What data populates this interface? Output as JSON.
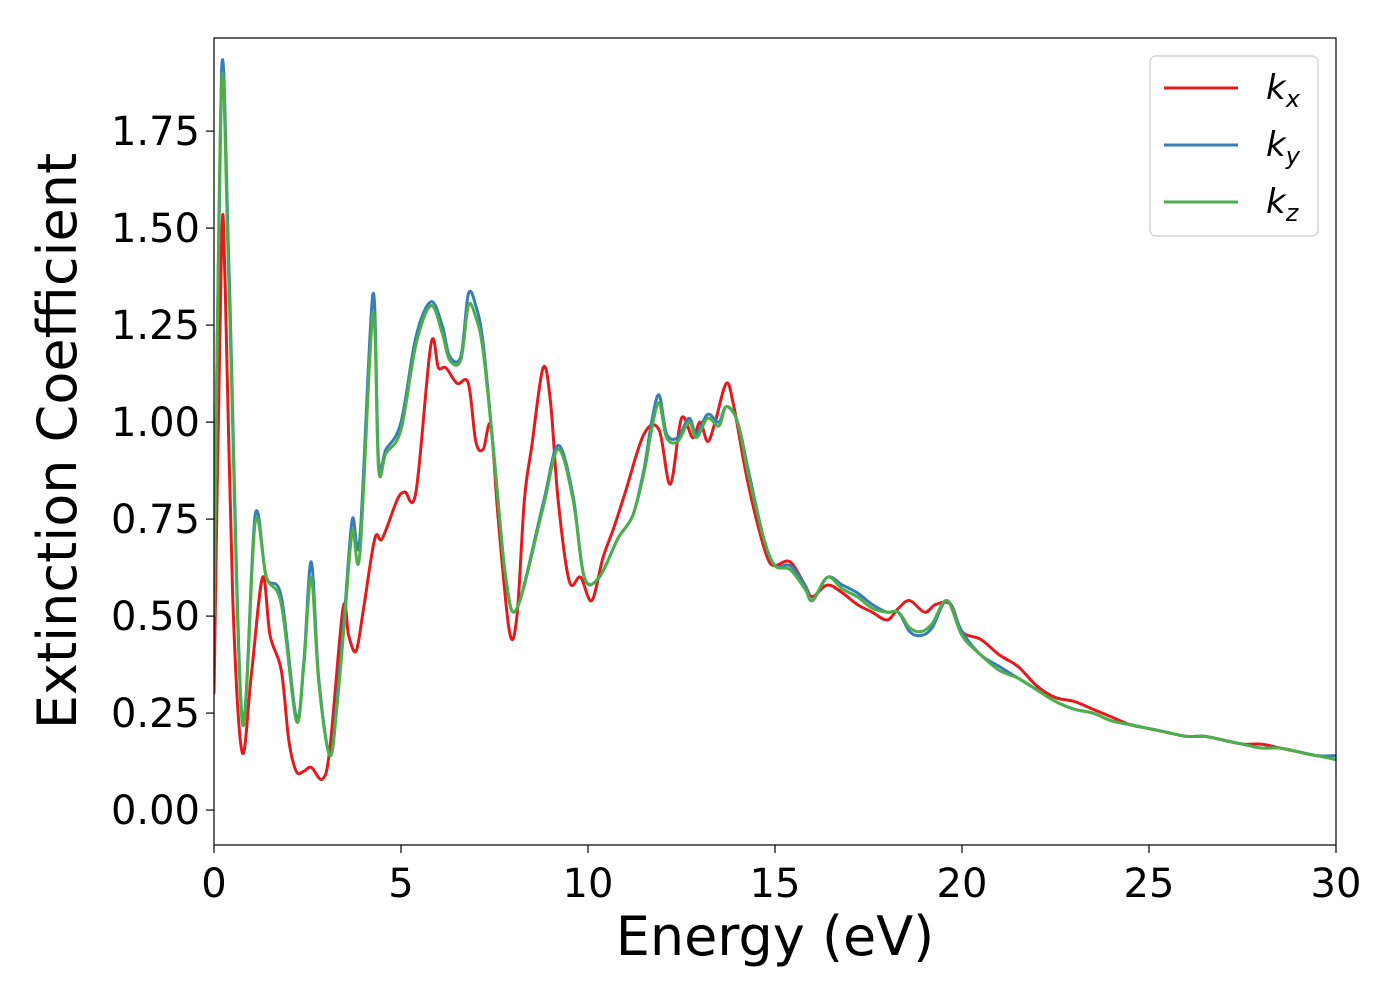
{
  "chart_data": {
    "type": "line",
    "title": "",
    "xlabel": "Energy (eV)",
    "ylabel": "Extinction Coefficient",
    "xlim": [
      0,
      30
    ],
    "ylim": [
      -0.09,
      1.99
    ],
    "xticks": [
      0,
      5,
      10,
      15,
      20,
      25,
      30
    ],
    "xtick_labels": [
      "0",
      "5",
      "10",
      "15",
      "20",
      "25",
      "30"
    ],
    "yticks": [
      0,
      0.25,
      0.5,
      0.75,
      1.0,
      1.25,
      1.5,
      1.75
    ],
    "ytick_labels": [
      "0.00",
      "0.25",
      "0.50",
      "0.75",
      "1.00",
      "1.25",
      "1.50",
      "1.75"
    ],
    "grid": false,
    "legend": {
      "position": "top-right"
    },
    "series": [
      {
        "name": "k",
        "sub": "x",
        "color": "#e41a1c",
        "x": [
          0,
          0.2,
          0.3,
          0.5,
          0.75,
          1.0,
          1.3,
          1.5,
          1.8,
          2.0,
          2.2,
          2.4,
          2.6,
          2.9,
          3.1,
          3.45,
          3.6,
          3.8,
          4.0,
          4.3,
          4.5,
          4.9,
          5.1,
          5.4,
          5.8,
          6.0,
          6.2,
          6.5,
          6.8,
          7.0,
          7.2,
          7.4,
          7.6,
          7.9,
          8.1,
          8.3,
          8.5,
          8.8,
          9.0,
          9.2,
          9.5,
          9.8,
          10.1,
          10.4,
          10.7,
          11.0,
          11.5,
          11.9,
          12.2,
          12.5,
          12.8,
          13.0,
          13.2,
          13.4,
          13.7,
          13.9,
          14.2,
          14.5,
          14.8,
          15.0,
          15.4,
          15.8,
          16.0,
          16.4,
          16.8,
          17.2,
          17.6,
          18.0,
          18.3,
          18.6,
          19.0,
          19.3,
          19.7,
          20.0,
          20.5,
          21.0,
          21.5,
          22.0,
          22.5,
          23.0,
          23.5,
          24.0,
          24.5,
          25.0,
          25.5,
          26.0,
          26.5,
          27.0,
          27.5,
          28.0,
          28.5,
          29.0,
          29.5,
          30.0
        ],
        "y": [
          0.3,
          1.45,
          1.35,
          0.55,
          0.15,
          0.35,
          0.6,
          0.45,
          0.36,
          0.18,
          0.1,
          0.1,
          0.11,
          0.08,
          0.16,
          0.52,
          0.45,
          0.41,
          0.52,
          0.7,
          0.7,
          0.8,
          0.82,
          0.82,
          1.2,
          1.14,
          1.14,
          1.1,
          1.1,
          0.95,
          0.93,
          0.99,
          0.75,
          0.46,
          0.5,
          0.8,
          0.94,
          1.14,
          1.05,
          0.8,
          0.59,
          0.6,
          0.54,
          0.65,
          0.73,
          0.82,
          0.97,
          0.98,
          0.84,
          1.01,
          0.96,
          1.0,
          0.95,
          1.0,
          1.1,
          1.04,
          0.88,
          0.75,
          0.65,
          0.63,
          0.64,
          0.58,
          0.55,
          0.58,
          0.56,
          0.53,
          0.51,
          0.49,
          0.52,
          0.54,
          0.51,
          0.53,
          0.53,
          0.46,
          0.44,
          0.4,
          0.37,
          0.32,
          0.29,
          0.28,
          0.26,
          0.24,
          0.22,
          0.21,
          0.2,
          0.19,
          0.19,
          0.18,
          0.17,
          0.17,
          0.16,
          0.15,
          0.14,
          0.14
        ]
      },
      {
        "name": "k",
        "sub": "y",
        "color": "#377eb8",
        "x": [
          0,
          0.2,
          0.4,
          0.75,
          1.1,
          1.4,
          1.8,
          2.2,
          2.4,
          2.6,
          2.8,
          3.1,
          3.3,
          3.5,
          3.7,
          3.9,
          4.25,
          4.4,
          4.6,
          5.0,
          5.4,
          5.8,
          6.1,
          6.3,
          6.6,
          6.8,
          7.0,
          7.2,
          7.5,
          7.8,
          8.1,
          8.8,
          9.2,
          9.6,
          9.9,
          10.3,
          10.8,
          11.2,
          11.5,
          11.7,
          11.9,
          12.1,
          12.4,
          12.7,
          12.9,
          13.2,
          13.5,
          13.7,
          14.0,
          14.3,
          14.7,
          15.0,
          15.4,
          15.8,
          16.0,
          16.4,
          16.8,
          17.2,
          17.6,
          18.0,
          18.3,
          18.6,
          18.9,
          19.2,
          19.6,
          20.0,
          20.5,
          21.0,
          21.5,
          22.0,
          22.5,
          23.0,
          23.5,
          24.0,
          24.5,
          25.0,
          25.5,
          26.0,
          26.5,
          27.0,
          27.5,
          28.0,
          28.5,
          29.0,
          29.5,
          30.0
        ],
        "y": [
          0.5,
          1.9,
          1.4,
          0.24,
          0.76,
          0.6,
          0.55,
          0.24,
          0.38,
          0.64,
          0.34,
          0.14,
          0.3,
          0.52,
          0.75,
          0.7,
          1.33,
          0.9,
          0.93,
          1.0,
          1.22,
          1.31,
          1.25,
          1.17,
          1.17,
          1.33,
          1.3,
          1.2,
          0.9,
          0.6,
          0.52,
          0.79,
          0.94,
          0.81,
          0.6,
          0.6,
          0.7,
          0.76,
          0.88,
          1.0,
          1.07,
          0.97,
          0.96,
          1.01,
          0.97,
          1.02,
          1.0,
          1.04,
          1.0,
          0.87,
          0.7,
          0.63,
          0.63,
          0.58,
          0.54,
          0.6,
          0.58,
          0.56,
          0.53,
          0.51,
          0.51,
          0.46,
          0.45,
          0.47,
          0.54,
          0.46,
          0.4,
          0.37,
          0.34,
          0.31,
          0.28,
          0.26,
          0.25,
          0.23,
          0.22,
          0.21,
          0.2,
          0.19,
          0.19,
          0.18,
          0.17,
          0.16,
          0.16,
          0.15,
          0.14,
          0.14
        ]
      },
      {
        "name": "k",
        "sub": "z",
        "color": "#4daf4a",
        "x": [
          0,
          0.2,
          0.4,
          0.75,
          1.1,
          1.4,
          1.8,
          2.2,
          2.4,
          2.6,
          2.8,
          3.1,
          3.3,
          3.5,
          3.7,
          3.9,
          4.25,
          4.4,
          4.6,
          5.0,
          5.4,
          5.8,
          6.1,
          6.3,
          6.6,
          6.8,
          7.0,
          7.2,
          7.5,
          7.8,
          8.1,
          8.8,
          9.2,
          9.6,
          9.9,
          10.3,
          10.8,
          11.2,
          11.5,
          11.7,
          11.9,
          12.1,
          12.4,
          12.7,
          12.9,
          13.2,
          13.5,
          13.7,
          14.0,
          14.3,
          14.7,
          15.0,
          15.4,
          15.8,
          16.0,
          16.4,
          16.8,
          17.2,
          17.6,
          18.0,
          18.3,
          18.6,
          18.9,
          19.2,
          19.6,
          20.0,
          20.5,
          21.0,
          21.5,
          22.0,
          22.5,
          23.0,
          23.5,
          24.0,
          24.5,
          25.0,
          25.5,
          26.0,
          26.5,
          27.0,
          27.5,
          28.0,
          28.5,
          29.0,
          29.5,
          30.0
        ],
        "y": [
          0.5,
          1.87,
          1.35,
          0.23,
          0.74,
          0.6,
          0.53,
          0.23,
          0.37,
          0.6,
          0.33,
          0.14,
          0.28,
          0.5,
          0.72,
          0.66,
          1.28,
          0.88,
          0.92,
          0.98,
          1.2,
          1.3,
          1.23,
          1.16,
          1.16,
          1.3,
          1.27,
          1.18,
          0.9,
          0.6,
          0.52,
          0.78,
          0.93,
          0.8,
          0.6,
          0.6,
          0.7,
          0.76,
          0.87,
          0.98,
          1.05,
          0.96,
          0.95,
          1.0,
          0.96,
          1.01,
          0.99,
          1.04,
          1.0,
          0.86,
          0.7,
          0.63,
          0.62,
          0.57,
          0.54,
          0.6,
          0.57,
          0.55,
          0.52,
          0.51,
          0.51,
          0.47,
          0.46,
          0.48,
          0.54,
          0.45,
          0.4,
          0.36,
          0.34,
          0.31,
          0.28,
          0.26,
          0.25,
          0.23,
          0.22,
          0.21,
          0.2,
          0.19,
          0.19,
          0.18,
          0.17,
          0.16,
          0.16,
          0.15,
          0.14,
          0.13
        ]
      }
    ]
  }
}
